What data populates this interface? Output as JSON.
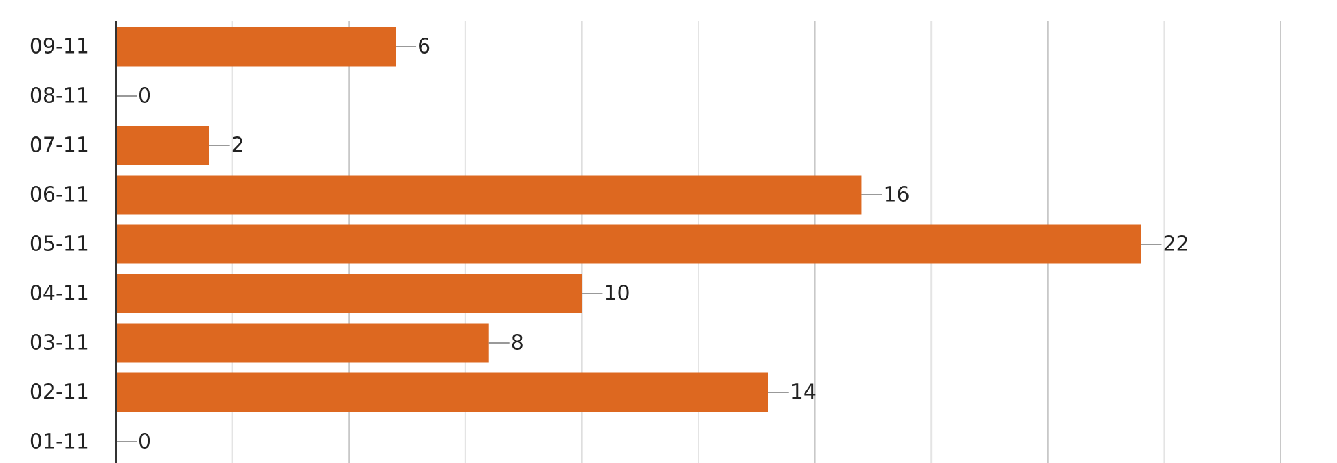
{
  "chart_data": {
    "type": "hbar",
    "categories": [
      "09-11",
      "08-11",
      "07-11",
      "06-11",
      "05-11",
      "04-11",
      "03-11",
      "02-11",
      "01-11"
    ],
    "values": [
      6,
      0,
      2,
      16,
      22,
      10,
      8,
      14,
      0
    ],
    "color": "#dd6820",
    "xlim": [
      0,
      25
    ],
    "xticks": [
      0,
      2.5,
      5,
      7.5,
      10,
      12.5,
      15,
      17.5,
      20,
      22.5,
      25
    ],
    "grid": true
  }
}
